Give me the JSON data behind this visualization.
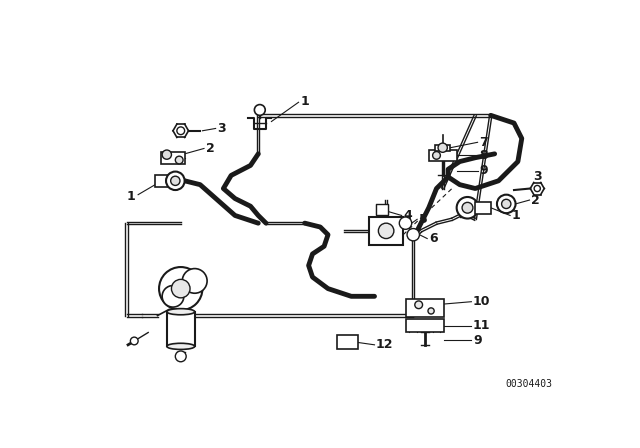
{
  "bg_color": "#ffffff",
  "line_color": "#1a1a1a",
  "catalog_number": "00304403",
  "lw_pipe": 2.0,
  "lw_hose": 2.5,
  "lw_thin": 1.0,
  "lw_label": 0.8
}
